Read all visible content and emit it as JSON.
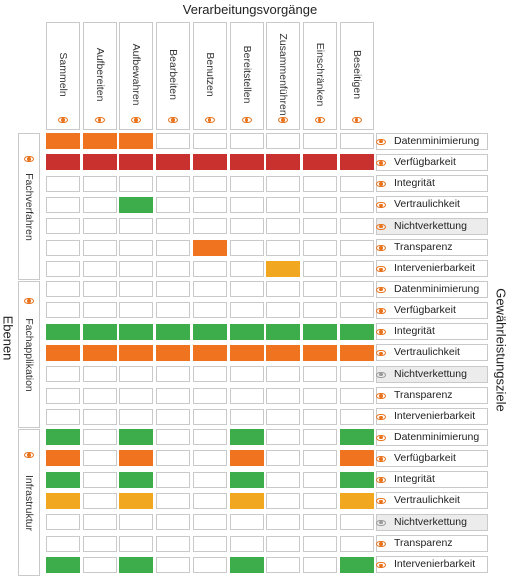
{
  "title": "Verarbeitungsvorgänge",
  "left_axis_label": "Ebenen",
  "right_axis_label": "Gewährleistungsziele",
  "columns": [
    "Sammeln",
    "Aufbereiten",
    "Aufbewahren",
    "Bearbeiten",
    "Benutzen",
    "Bereitstellen",
    "Zusammenführen",
    "Einschränken",
    "Beseitigen"
  ],
  "row_labels": [
    "Datenminimierung",
    "Verfügbarkeit",
    "Integrität",
    "Vertraulichkeit",
    "Nichtverkettung",
    "Transparenz",
    "Intervenierbarkeit"
  ],
  "colors": {
    "O": "#f07320",
    "R": "#c8312e",
    "G": "#3dad4b",
    "Y": "#f2a721",
    "accent": "#e8731d"
  },
  "groups": [
    {
      "label": "Fachverfahren",
      "rows": [
        {
          "label": "Datenminimierung",
          "icon": "eye-icon",
          "shaded": false,
          "cells": [
            "O",
            "O",
            "O",
            "",
            "",
            "",
            "",
            "",
            ""
          ]
        },
        {
          "label": "Verfügbarkeit",
          "icon": "eye-icon",
          "shaded": false,
          "cells": [
            "R",
            "R",
            "R",
            "R",
            "R",
            "R",
            "R",
            "R",
            "R"
          ]
        },
        {
          "label": "Integrität",
          "icon": "eye-icon",
          "shaded": false,
          "cells": [
            "",
            "",
            "",
            "",
            "",
            "",
            "",
            "",
            ""
          ]
        },
        {
          "label": "Vertraulichkeit",
          "icon": "eye-icon",
          "shaded": false,
          "cells": [
            "",
            "",
            "G",
            "",
            "",
            "",
            "",
            "",
            ""
          ]
        },
        {
          "label": "Nichtverkettung",
          "icon": "eye-icon",
          "shaded": true,
          "cells": [
            "",
            "",
            "",
            "",
            "",
            "",
            "",
            "",
            ""
          ]
        },
        {
          "label": "Transparenz",
          "icon": "eye-icon",
          "shaded": false,
          "cells": [
            "",
            "",
            "",
            "",
            "O",
            "",
            "",
            "",
            ""
          ]
        },
        {
          "label": "Intervenierbarkeit",
          "icon": "eye-icon",
          "shaded": false,
          "cells": [
            "",
            "",
            "",
            "",
            "",
            "",
            "Y",
            "",
            ""
          ]
        }
      ]
    },
    {
      "label": "Fachapplikation",
      "rows": [
        {
          "label": "Datenminimierung",
          "icon": "eye-icon",
          "shaded": false,
          "cells": [
            "",
            "",
            "",
            "",
            "",
            "",
            "",
            "",
            ""
          ]
        },
        {
          "label": "Verfügbarkeit",
          "icon": "eye-icon",
          "shaded": false,
          "cells": [
            "",
            "",
            "",
            "",
            "",
            "",
            "",
            "",
            ""
          ]
        },
        {
          "label": "Integrität",
          "icon": "eye-icon",
          "shaded": false,
          "cells": [
            "G",
            "G",
            "G",
            "G",
            "G",
            "G",
            "G",
            "G",
            "G"
          ]
        },
        {
          "label": "Vertraulichkeit",
          "icon": "eye-icon",
          "shaded": false,
          "cells": [
            "O",
            "O",
            "O",
            "O",
            "O",
            "O",
            "O",
            "O",
            "O"
          ]
        },
        {
          "label": "Nichtverkettung",
          "icon": "eye-slash-icon",
          "shaded": true,
          "cells": [
            "",
            "",
            "",
            "",
            "",
            "",
            "",
            "",
            ""
          ]
        },
        {
          "label": "Transparenz",
          "icon": "eye-icon",
          "shaded": false,
          "cells": [
            "",
            "",
            "",
            "",
            "",
            "",
            "",
            "",
            ""
          ]
        },
        {
          "label": "Intervenierbarkeit",
          "icon": "eye-icon",
          "shaded": false,
          "cells": [
            "",
            "",
            "",
            "",
            "",
            "",
            "",
            "",
            ""
          ]
        }
      ]
    },
    {
      "label": "Infrastruktur",
      "rows": [
        {
          "label": "Datenminimierung",
          "icon": "eye-icon",
          "shaded": false,
          "cells": [
            "G",
            "",
            "G",
            "",
            "",
            "G",
            "",
            "",
            "G"
          ]
        },
        {
          "label": "Verfügbarkeit",
          "icon": "eye-icon",
          "shaded": false,
          "cells": [
            "O",
            "",
            "O",
            "",
            "",
            "O",
            "",
            "",
            "O"
          ]
        },
        {
          "label": "Integrität",
          "icon": "eye-icon",
          "shaded": false,
          "cells": [
            "G",
            "",
            "G",
            "",
            "",
            "G",
            "",
            "",
            "G"
          ]
        },
        {
          "label": "Vertraulichkeit",
          "icon": "eye-icon",
          "shaded": false,
          "cells": [
            "Y",
            "",
            "Y",
            "",
            "",
            "Y",
            "",
            "",
            "Y"
          ]
        },
        {
          "label": "Nichtverkettung",
          "icon": "eye-slash-icon",
          "shaded": true,
          "cells": [
            "",
            "",
            "",
            "",
            "",
            "",
            "",
            "",
            ""
          ]
        },
        {
          "label": "Transparenz",
          "icon": "eye-icon",
          "shaded": false,
          "cells": [
            "",
            "",
            "",
            "",
            "",
            "",
            "",
            "",
            ""
          ]
        },
        {
          "label": "Intervenierbarkeit",
          "icon": "eye-icon",
          "shaded": false,
          "cells": [
            "G",
            "",
            "G",
            "",
            "",
            "G",
            "",
            "",
            "G"
          ]
        }
      ]
    }
  ]
}
